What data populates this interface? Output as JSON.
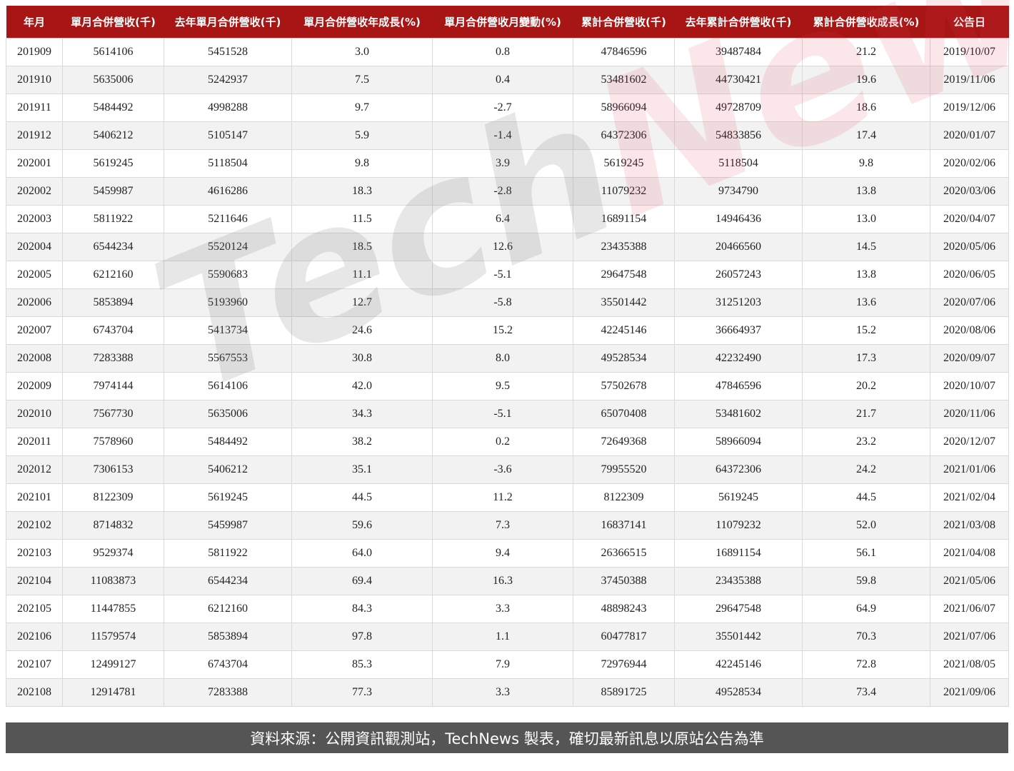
{
  "columns": [
    "年月",
    "單月合併營收(千)",
    "去年單月合併營收(千)",
    "單月合併營收年成長(%)",
    "單月合併營收月變動(%)",
    "累計合併營收(千)",
    "去年累計合併營收(千)",
    "累計合併營收成長(%)",
    "公告日"
  ],
  "rows": [
    [
      "201909",
      "5614106",
      "5451528",
      "3.0",
      "0.8",
      "47846596",
      "39487484",
      "21.2",
      "2019/10/07"
    ],
    [
      "201910",
      "5635006",
      "5242937",
      "7.5",
      "0.4",
      "53481602",
      "44730421",
      "19.6",
      "2019/11/06"
    ],
    [
      "201911",
      "5484492",
      "4998288",
      "9.7",
      "-2.7",
      "58966094",
      "49728709",
      "18.6",
      "2019/12/06"
    ],
    [
      "201912",
      "5406212",
      "5105147",
      "5.9",
      "-1.4",
      "64372306",
      "54833856",
      "17.4",
      "2020/01/07"
    ],
    [
      "202001",
      "5619245",
      "5118504",
      "9.8",
      "3.9",
      "5619245",
      "5118504",
      "9.8",
      "2020/02/06"
    ],
    [
      "202002",
      "5459987",
      "4616286",
      "18.3",
      "-2.8",
      "11079232",
      "9734790",
      "13.8",
      "2020/03/06"
    ],
    [
      "202003",
      "5811922",
      "5211646",
      "11.5",
      "6.4",
      "16891154",
      "14946436",
      "13.0",
      "2020/04/07"
    ],
    [
      "202004",
      "6544234",
      "5520124",
      "18.5",
      "12.6",
      "23435388",
      "20466560",
      "14.5",
      "2020/05/06"
    ],
    [
      "202005",
      "6212160",
      "5590683",
      "11.1",
      "-5.1",
      "29647548",
      "26057243",
      "13.8",
      "2020/06/05"
    ],
    [
      "202006",
      "5853894",
      "5193960",
      "12.7",
      "-5.8",
      "35501442",
      "31251203",
      "13.6",
      "2020/07/06"
    ],
    [
      "202007",
      "6743704",
      "5413734",
      "24.6",
      "15.2",
      "42245146",
      "36664937",
      "15.2",
      "2020/08/06"
    ],
    [
      "202008",
      "7283388",
      "5567553",
      "30.8",
      "8.0",
      "49528534",
      "42232490",
      "17.3",
      "2020/09/07"
    ],
    [
      "202009",
      "7974144",
      "5614106",
      "42.0",
      "9.5",
      "57502678",
      "47846596",
      "20.2",
      "2020/10/07"
    ],
    [
      "202010",
      "7567730",
      "5635006",
      "34.3",
      "-5.1",
      "65070408",
      "53481602",
      "21.7",
      "2020/11/06"
    ],
    [
      "202011",
      "7578960",
      "5484492",
      "38.2",
      "0.2",
      "72649368",
      "58966094",
      "23.2",
      "2020/12/07"
    ],
    [
      "202012",
      "7306153",
      "5406212",
      "35.1",
      "-3.6",
      "79955520",
      "64372306",
      "24.2",
      "2021/01/06"
    ],
    [
      "202101",
      "8122309",
      "5619245",
      "44.5",
      "11.2",
      "8122309",
      "5619245",
      "44.5",
      "2021/02/04"
    ],
    [
      "202102",
      "8714832",
      "5459987",
      "59.6",
      "7.3",
      "16837141",
      "11079232",
      "52.0",
      "2021/03/08"
    ],
    [
      "202103",
      "9529374",
      "5811922",
      "64.0",
      "9.4",
      "26366515",
      "16891154",
      "56.1",
      "2021/04/08"
    ],
    [
      "202104",
      "11083873",
      "6544234",
      "69.4",
      "16.3",
      "37450388",
      "23435388",
      "59.8",
      "2021/05/06"
    ],
    [
      "202105",
      "11447855",
      "6212160",
      "84.3",
      "3.3",
      "48898243",
      "29647548",
      "64.9",
      "2021/06/07"
    ],
    [
      "202106",
      "11579574",
      "5853894",
      "97.8",
      "1.1",
      "60477817",
      "35501442",
      "70.3",
      "2021/07/06"
    ],
    [
      "202107",
      "12499127",
      "6743704",
      "85.3",
      "7.9",
      "72976944",
      "42245146",
      "72.8",
      "2021/08/05"
    ],
    [
      "202108",
      "12914781",
      "7283388",
      "77.3",
      "3.3",
      "85891725",
      "49528534",
      "73.4",
      "2021/09/06"
    ]
  ],
  "watermark": {
    "part1": "Tech",
    "part2": "News"
  },
  "footer": "資料來源：公開資訊觀測站，TechNews 製表，確切最新訊息以原站公告為準",
  "colors": {
    "header": "#a81515",
    "footer": "#555555",
    "alt_row": "#f2f2f2"
  }
}
